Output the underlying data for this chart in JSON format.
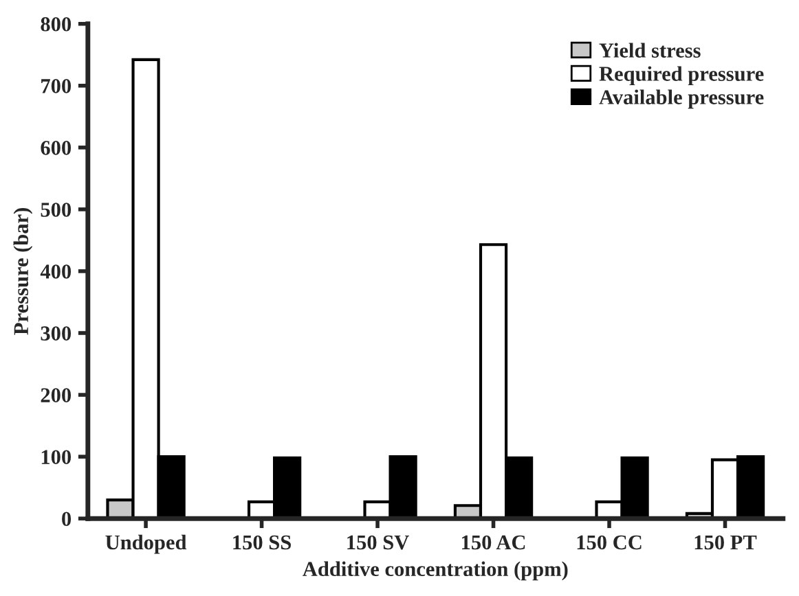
{
  "chart_data": {
    "type": "bar",
    "xlabel": "Additive concentration (ppm)",
    "ylabel": "Pressure (bar)",
    "categories": [
      "Undoped",
      "150 SS",
      "150 SV",
      "150 AC",
      "150 CC",
      "150 PT"
    ],
    "series": [
      {
        "name": "Yield stress",
        "color": "#c8c8c8",
        "values": [
          30,
          null,
          null,
          21,
          null,
          8
        ]
      },
      {
        "name": "Required pressure",
        "color": "#ffffff",
        "values": [
          742,
          27,
          27,
          443,
          27,
          95
        ]
      },
      {
        "name": "Available pressure",
        "color": "#000000",
        "values": [
          100,
          98,
          100,
          98,
          98,
          100
        ]
      }
    ],
    "ylim": [
      0,
      800
    ],
    "yticks": [
      0,
      100,
      200,
      300,
      400,
      500,
      600,
      700,
      800
    ],
    "legend": "top right",
    "grid": false
  }
}
